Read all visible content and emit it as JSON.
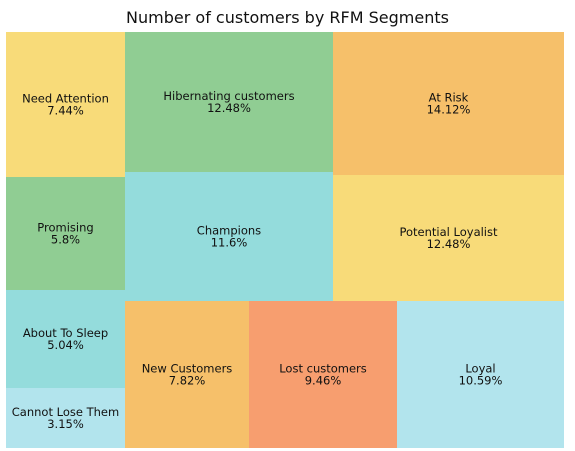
{
  "chart_data": {
    "type": "treemap",
    "title": "Number of customers by RFM Segments",
    "colors": {
      "yellow": "#F8DB79",
      "green": "#90CD93",
      "orange": "#F6C06A",
      "teal": "#94DCDC",
      "salmon": "#F79E6F",
      "lightblue": "#B2E4ED"
    },
    "segments": [
      {
        "name": "Need Attention",
        "value_label": "7.44%",
        "value": 7.44,
        "color": "#F8DB79"
      },
      {
        "name": "Promising",
        "value_label": "5.8%",
        "value": 5.8,
        "color": "#90CD93"
      },
      {
        "name": "About To Sleep",
        "value_label": "5.04%",
        "value": 5.04,
        "color": "#94DCDC"
      },
      {
        "name": "Cannot Lose Them",
        "value_label": "3.15%",
        "value": 3.15,
        "color": "#B2E4ED"
      },
      {
        "name": "Hibernating customers",
        "value_label": "12.48%",
        "value": 12.48,
        "color": "#90CD93"
      },
      {
        "name": "Champions",
        "value_label": "11.6%",
        "value": 11.6,
        "color": "#94DCDC"
      },
      {
        "name": "At Risk",
        "value_label": "14.12%",
        "value": 14.12,
        "color": "#F6C06A"
      },
      {
        "name": "Potential Loyalist",
        "value_label": "12.48%",
        "value": 12.48,
        "color": "#F8DB79"
      },
      {
        "name": "New Customers",
        "value_label": "7.82%",
        "value": 7.82,
        "color": "#F6C06A"
      },
      {
        "name": "Lost customers",
        "value_label": "9.46%",
        "value": 9.46,
        "color": "#F79E6F"
      },
      {
        "name": "Loyal",
        "value_label": "10.59%",
        "value": 10.59,
        "color": "#B2E4ED"
      }
    ]
  }
}
